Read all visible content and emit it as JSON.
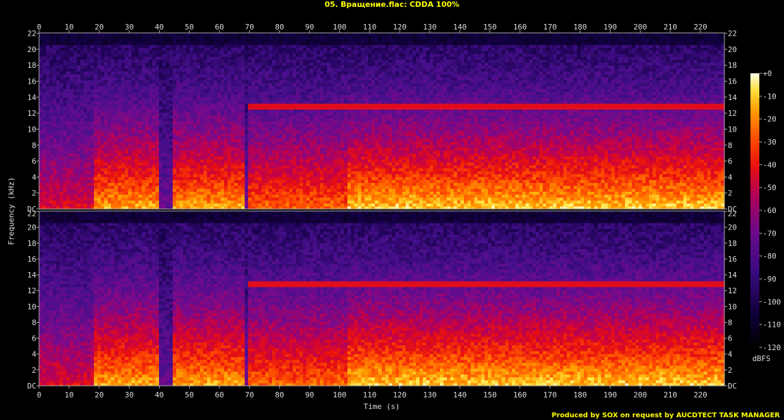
{
  "chart_data": {
    "type": "heatmap",
    "title": "05. Вращение.flac: CDDA 100%",
    "xlabel": "Time (s)",
    "ylabel": "Frequency (kHz)",
    "xlim": [
      0,
      228
    ],
    "ylim": [
      0,
      22.05
    ],
    "x_ticks": [
      0,
      10,
      20,
      30,
      40,
      50,
      60,
      70,
      80,
      90,
      100,
      110,
      120,
      130,
      140,
      150,
      160,
      170,
      180,
      190,
      200,
      210,
      220
    ],
    "y_ticks": [
      {
        "value": 0,
        "label": "DC"
      },
      {
        "value": 2,
        "label": "2"
      },
      {
        "value": 4,
        "label": "4"
      },
      {
        "value": 6,
        "label": "6"
      },
      {
        "value": 8,
        "label": "8"
      },
      {
        "value": 10,
        "label": "10"
      },
      {
        "value": 12,
        "label": "12"
      },
      {
        "value": 14,
        "label": "14"
      },
      {
        "value": 16,
        "label": "16"
      },
      {
        "value": 18,
        "label": "18"
      },
      {
        "value": 20,
        "label": "20"
      },
      {
        "value": 22,
        "label": "22"
      }
    ],
    "channels": 2,
    "colorbar": {
      "label": "dBFS",
      "range": [
        -120,
        0
      ],
      "ticks": [
        {
          "value": 0,
          "label": "+0"
        },
        {
          "value": -10,
          "label": "-10"
        },
        {
          "value": -20,
          "label": "-20"
        },
        {
          "value": -30,
          "label": "-30"
        },
        {
          "value": -40,
          "label": "-40"
        },
        {
          "value": -50,
          "label": "-50"
        },
        {
          "value": -60,
          "label": "-60"
        },
        {
          "value": -70,
          "label": "-70"
        },
        {
          "value": -80,
          "label": "-80"
        },
        {
          "value": -90,
          "label": "-90"
        },
        {
          "value": -100,
          "label": "-100"
        },
        {
          "value": -110,
          "label": "-110"
        },
        {
          "value": -120,
          "label": "-120"
        }
      ]
    },
    "segments": [
      {
        "start": 0,
        "end": 18,
        "level": 0.55
      },
      {
        "start": 18,
        "end": 40,
        "level": 0.85
      },
      {
        "start": 40,
        "end": 44,
        "level": 0.25
      },
      {
        "start": 44,
        "end": 68,
        "level": 0.85
      },
      {
        "start": 68,
        "end": 70,
        "level": 0.3
      },
      {
        "start": 70,
        "end": 103,
        "level": 0.75
      },
      {
        "start": 103,
        "end": 228,
        "level": 0.9
      }
    ],
    "steady_tone_khz": 12.6,
    "credit": "Produced by SOX on request by AUCDTECT TASK MANAGER"
  }
}
